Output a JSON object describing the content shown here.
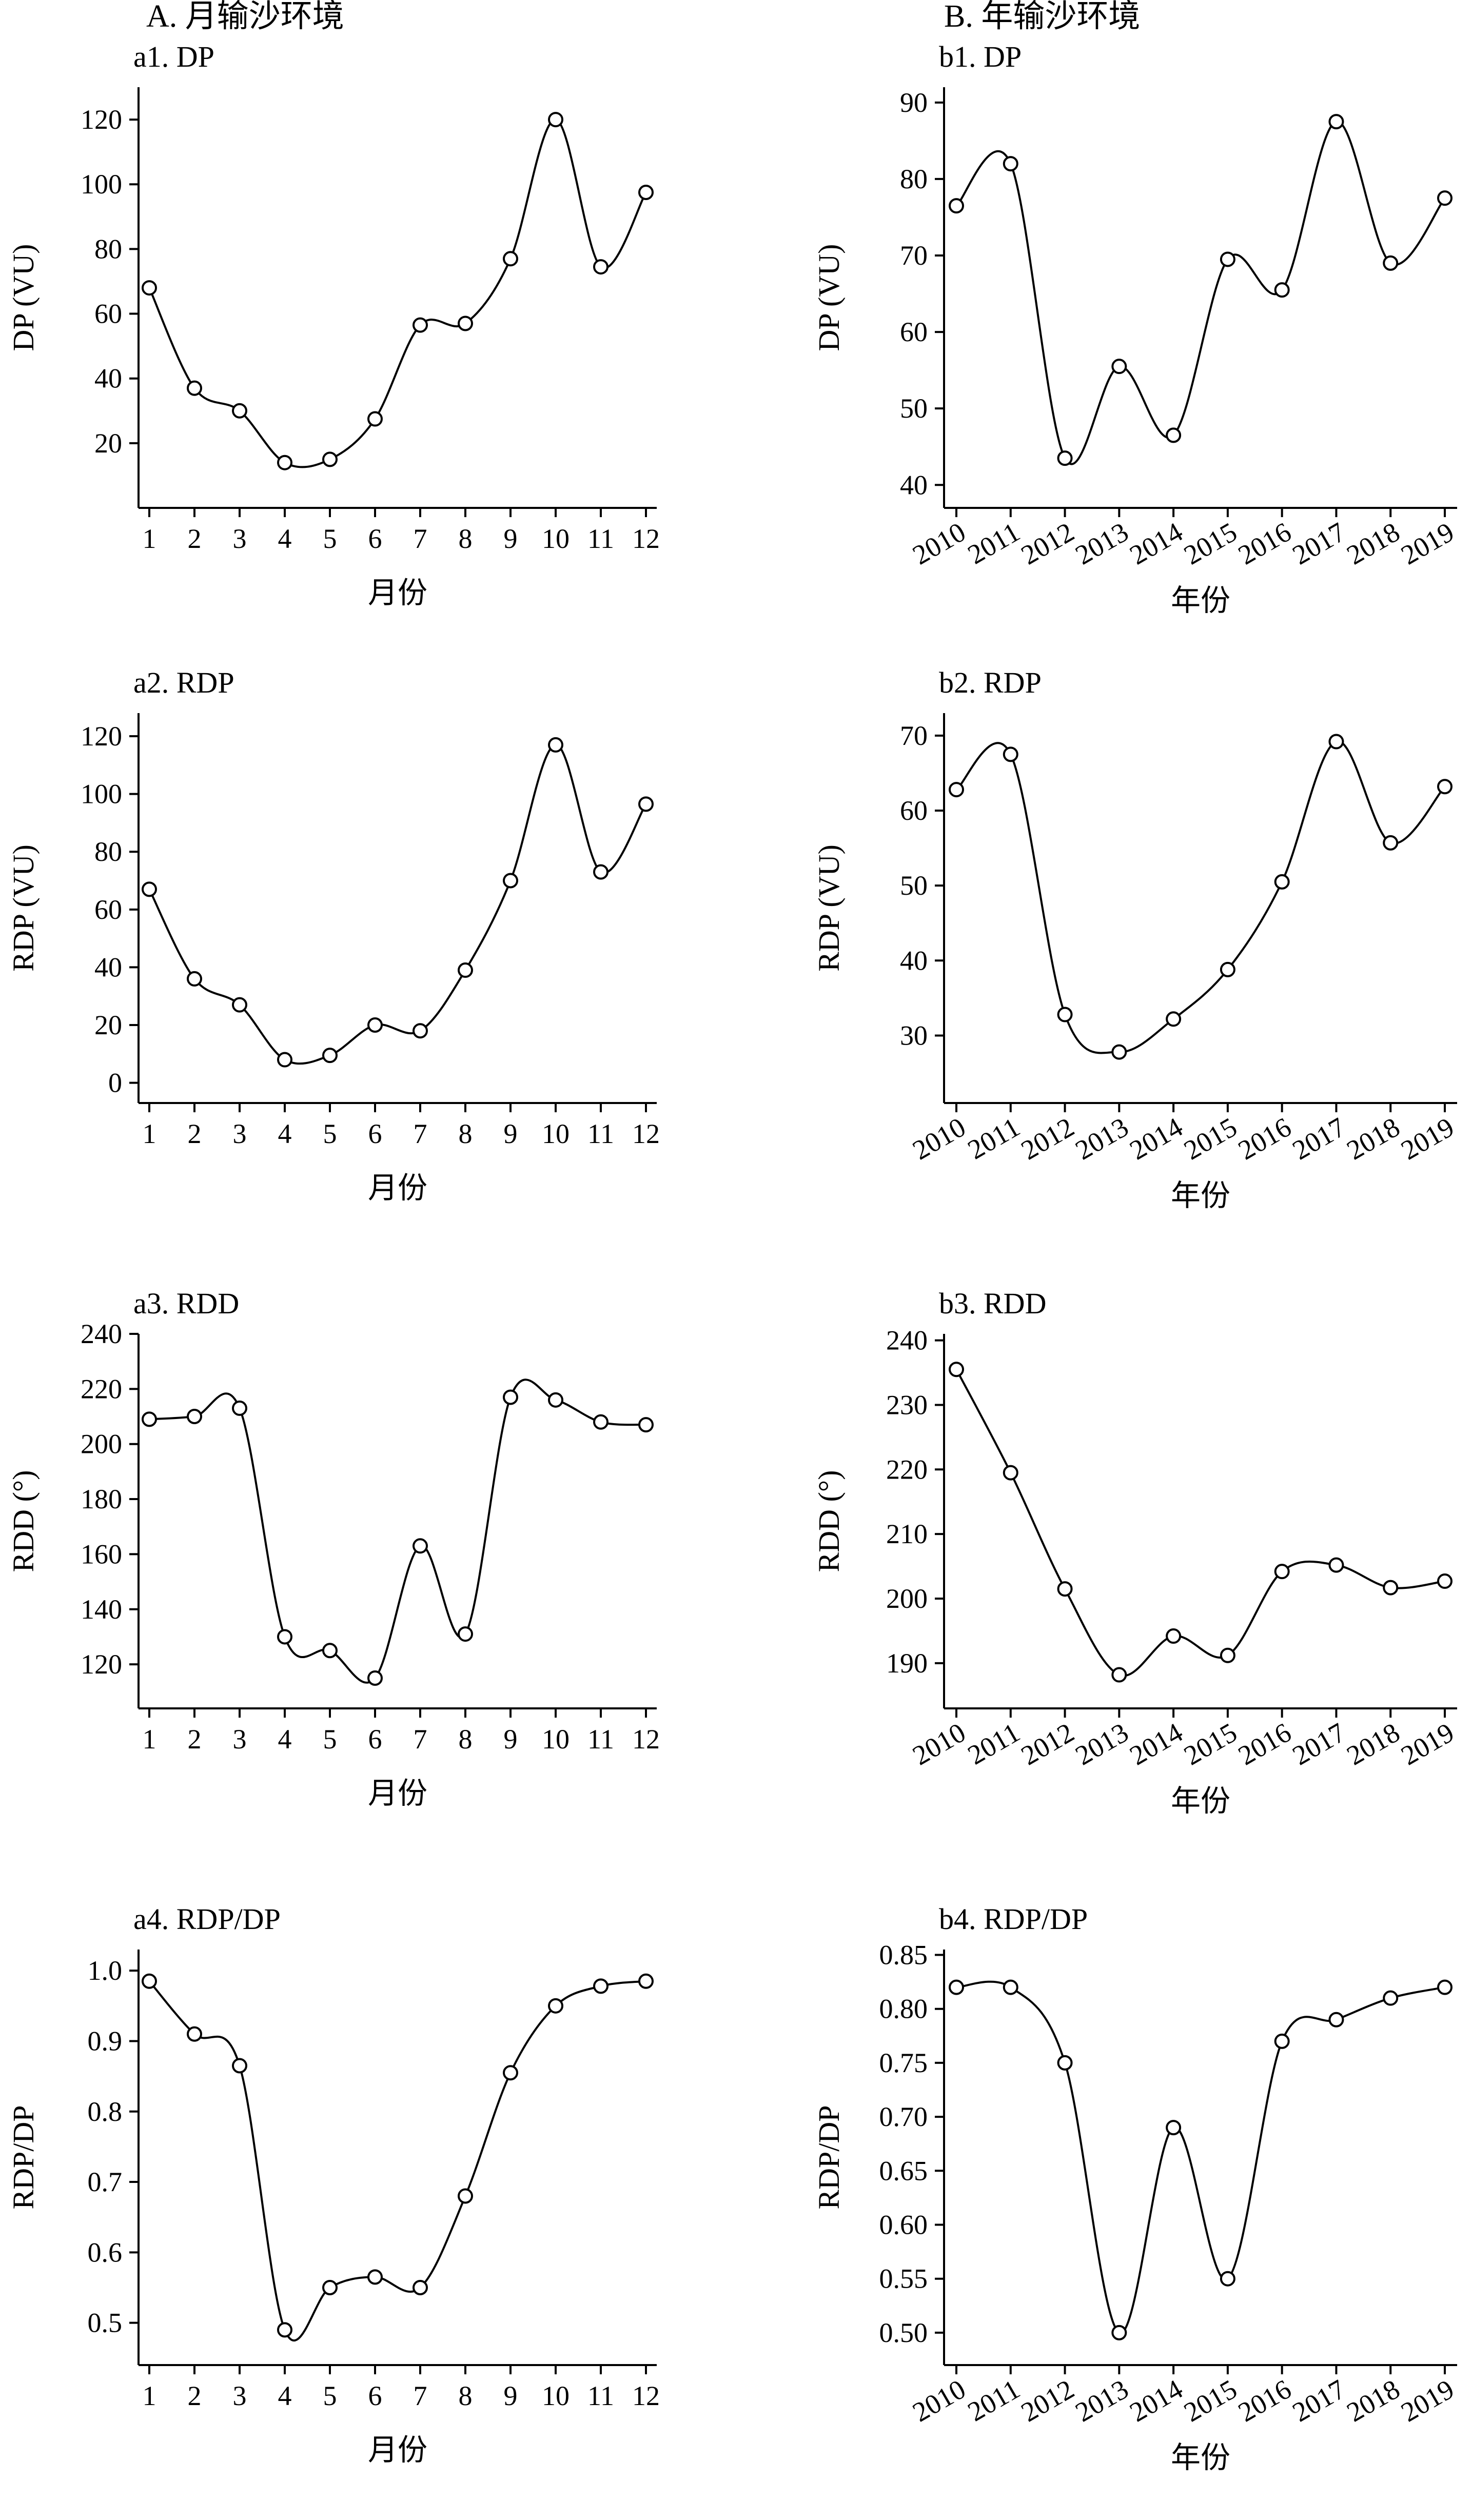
{
  "sections": [
    {
      "title": "A. 月输沙环境"
    },
    {
      "title": "B. 年输沙环境"
    }
  ],
  "chart_data": [
    {
      "id": "a1",
      "type": "line",
      "title": "a1. DP",
      "xlabel": "月份",
      "ylabel": "DP (VU)",
      "categories": [
        "1",
        "2",
        "3",
        "4",
        "5",
        "6",
        "7",
        "8",
        "9",
        "10",
        "11",
        "12"
      ],
      "values": [
        68,
        37,
        30,
        14,
        15,
        27.5,
        56.5,
        57,
        77,
        120,
        74.5,
        97.5
      ],
      "ylim": [
        0,
        130
      ],
      "yticks": [
        20,
        40,
        60,
        80,
        100,
        120
      ],
      "yticklabels": [
        "20",
        "40",
        "60",
        "80",
        "100",
        "120"
      ],
      "rotate_x": false
    },
    {
      "id": "a2",
      "type": "line",
      "title": "a2. RDP",
      "xlabel": "月份",
      "ylabel": "RDP (VU)",
      "categories": [
        "1",
        "2",
        "3",
        "4",
        "5",
        "6",
        "7",
        "8",
        "9",
        "10",
        "11",
        "12"
      ],
      "values": [
        67,
        36,
        27,
        8,
        9.5,
        20,
        18,
        39,
        70,
        117,
        73,
        96.5
      ],
      "ylim": [
        -7,
        128
      ],
      "yticks": [
        0,
        20,
        40,
        60,
        80,
        100,
        120
      ],
      "yticklabels": [
        "0",
        "20",
        "40",
        "60",
        "80",
        "100",
        "120"
      ],
      "rotate_x": false
    },
    {
      "id": "a3",
      "type": "line",
      "title": "a3. RDD",
      "xlabel": "月份",
      "ylabel": "RDD (°)",
      "categories": [
        "1",
        "2",
        "3",
        "4",
        "5",
        "6",
        "7",
        "8",
        "9",
        "10",
        "11",
        "12"
      ],
      "values": [
        209,
        210,
        213,
        130,
        125,
        115,
        163,
        131,
        217,
        216,
        208,
        207
      ],
      "ylim": [
        104,
        240
      ],
      "yticks": [
        120,
        140,
        160,
        180,
        200,
        220,
        240
      ],
      "yticklabels": [
        "120",
        "140",
        "160",
        "180",
        "200",
        "220",
        "240"
      ],
      "rotate_x": false
    },
    {
      "id": "a4",
      "type": "line",
      "title": "a4. RDP/DP",
      "xlabel": "月份",
      "ylabel": "RDP/DP",
      "categories": [
        "1",
        "2",
        "3",
        "4",
        "5",
        "6",
        "7",
        "8",
        "9",
        "10",
        "11",
        "12"
      ],
      "values": [
        0.985,
        0.91,
        0.865,
        0.49,
        0.55,
        0.565,
        0.55,
        0.68,
        0.855,
        0.95,
        0.978,
        0.985
      ],
      "ylim": [
        0.44,
        1.03
      ],
      "yticks": [
        0.5,
        0.6,
        0.7,
        0.8,
        0.9,
        1.0
      ],
      "yticklabels": [
        "0.5",
        "0.6",
        "0.7",
        "0.8",
        "0.9",
        "1.0"
      ],
      "rotate_x": false
    },
    {
      "id": "b1",
      "type": "line",
      "title": "b1. DP",
      "xlabel": "年份",
      "ylabel": "DP (VU)",
      "categories": [
        "2010",
        "2011",
        "2012",
        "2013",
        "2014",
        "2015",
        "2016",
        "2017",
        "2018",
        "2019"
      ],
      "values": [
        76.5,
        82,
        43.5,
        55.5,
        46.5,
        69.5,
        65.5,
        87.5,
        69,
        77.5
      ],
      "ylim": [
        37,
        92
      ],
      "yticks": [
        40,
        50,
        60,
        70,
        80,
        90
      ],
      "yticklabels": [
        "40",
        "50",
        "60",
        "70",
        "80",
        "90"
      ],
      "rotate_x": true
    },
    {
      "id": "b2",
      "type": "line",
      "title": "b2. RDP",
      "xlabel": "年份",
      "ylabel": "RDP (VU)",
      "categories": [
        "2010",
        "2011",
        "2012",
        "2013",
        "2014",
        "2015",
        "2016",
        "2017",
        "2018",
        "2019"
      ],
      "values": [
        62.8,
        67.5,
        32.8,
        27.8,
        32.2,
        38.8,
        50.5,
        69.2,
        55.7,
        63.2
      ],
      "ylim": [
        21,
        73
      ],
      "yticks": [
        30,
        40,
        50,
        60,
        70
      ],
      "yticklabels": [
        "30",
        "40",
        "50",
        "60",
        "70"
      ],
      "rotate_x": true
    },
    {
      "id": "b3",
      "type": "line",
      "title": "b3. RDD",
      "xlabel": "年份",
      "ylabel": "RDD (°)",
      "categories": [
        "2010",
        "2011",
        "2012",
        "2013",
        "2014",
        "2015",
        "2016",
        "2017",
        "2018",
        "2019"
      ],
      "values": [
        235.5,
        219.5,
        201.5,
        188.2,
        194.2,
        191.2,
        204.2,
        205.2,
        201.7,
        202.7
      ],
      "ylim": [
        183,
        241
      ],
      "yticks": [
        190,
        200,
        210,
        220,
        230,
        240
      ],
      "yticklabels": [
        "190",
        "200",
        "210",
        "220",
        "230",
        "240"
      ],
      "rotate_x": true
    },
    {
      "id": "b4",
      "type": "line",
      "title": "b4. RDP/DP",
      "xlabel": "年份",
      "ylabel": "RDP/DP",
      "categories": [
        "2010",
        "2011",
        "2012",
        "2013",
        "2014",
        "2015",
        "2016",
        "2017",
        "2018",
        "2019"
      ],
      "values": [
        0.82,
        0.82,
        0.75,
        0.5,
        0.69,
        0.55,
        0.77,
        0.79,
        0.81,
        0.82
      ],
      "ylim": [
        0.47,
        0.855
      ],
      "yticks": [
        0.5,
        0.55,
        0.6,
        0.65,
        0.7,
        0.75,
        0.8,
        0.85
      ],
      "yticklabels": [
        "0.50",
        "0.55",
        "0.60",
        "0.65",
        "0.70",
        "0.75",
        "0.80",
        "0.85"
      ],
      "rotate_x": true
    }
  ]
}
